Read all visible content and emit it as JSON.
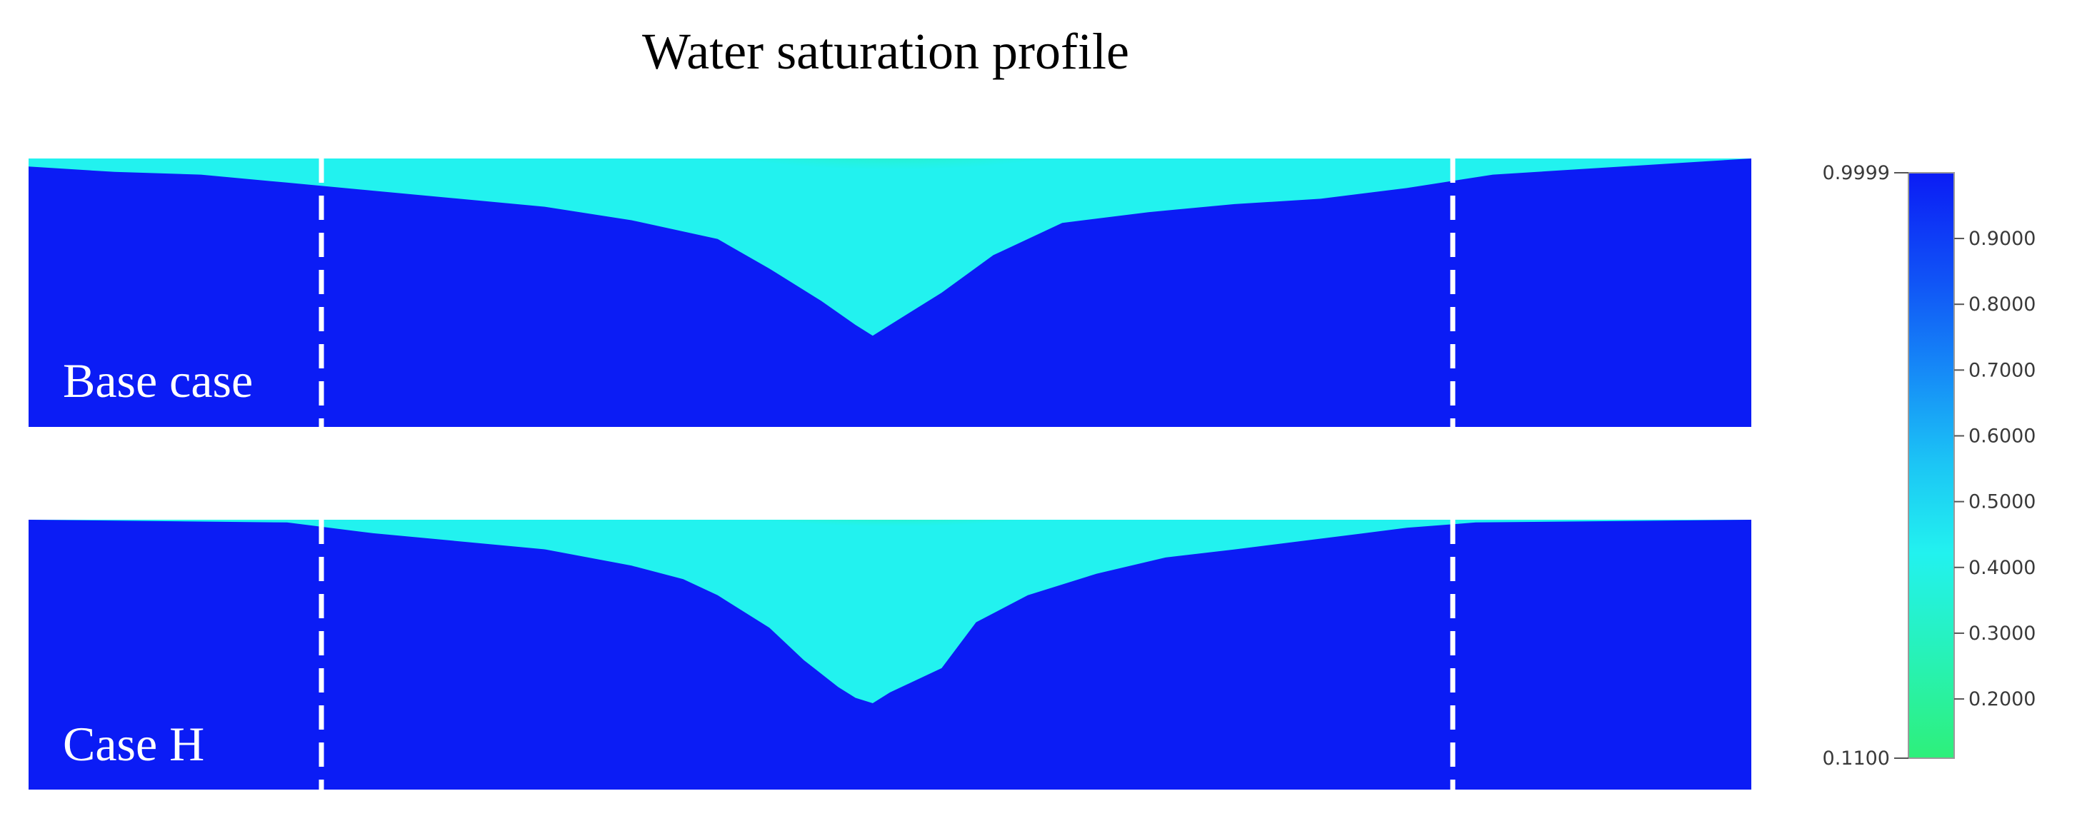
{
  "chart_data": {
    "type": "heatmap",
    "title": "Water saturation profile",
    "panels": [
      {
        "label": "Base case",
        "plume": {
          "surface_x_range": [
            0.06,
            0.97
          ],
          "outer_depth": [
            [
              0.0,
              0.03
            ],
            [
              0.05,
              0.05
            ],
            [
              0.1,
              0.06
            ],
            [
              0.15,
              0.09
            ],
            [
              0.2,
              0.12
            ],
            [
              0.25,
              0.15
            ],
            [
              0.3,
              0.18
            ],
            [
              0.35,
              0.23
            ],
            [
              0.4,
              0.3
            ],
            [
              0.43,
              0.41
            ],
            [
              0.46,
              0.53
            ],
            [
              0.48,
              0.62
            ],
            [
              0.49,
              0.66
            ],
            [
              0.5,
              0.62
            ],
            [
              0.53,
              0.5
            ],
            [
              0.56,
              0.36
            ],
            [
              0.6,
              0.24
            ],
            [
              0.65,
              0.2
            ],
            [
              0.7,
              0.17
            ],
            [
              0.75,
              0.15
            ],
            [
              0.8,
              0.11
            ],
            [
              0.85,
              0.06
            ],
            [
              0.9,
              0.04
            ],
            [
              0.95,
              0.02
            ],
            [
              1.0,
              0.0
            ]
          ],
          "low_saturation_core": [
            0.42,
            0.6,
            0.18
          ]
        }
      },
      {
        "label": "Case H",
        "plume": {
          "surface_x_range": [
            0.17,
            0.83
          ],
          "outer_depth": [
            [
              0.0,
              0.0
            ],
            [
              0.15,
              0.01
            ],
            [
              0.2,
              0.05
            ],
            [
              0.25,
              0.08
            ],
            [
              0.3,
              0.11
            ],
            [
              0.35,
              0.17
            ],
            [
              0.38,
              0.22
            ],
            [
              0.4,
              0.28
            ],
            [
              0.43,
              0.4
            ],
            [
              0.45,
              0.52
            ],
            [
              0.47,
              0.62
            ],
            [
              0.48,
              0.66
            ],
            [
              0.49,
              0.68
            ],
            [
              0.5,
              0.64
            ],
            [
              0.53,
              0.55
            ],
            [
              0.55,
              0.38
            ],
            [
              0.58,
              0.28
            ],
            [
              0.62,
              0.2
            ],
            [
              0.66,
              0.14
            ],
            [
              0.7,
              0.11
            ],
            [
              0.75,
              0.07
            ],
            [
              0.8,
              0.03
            ],
            [
              0.84,
              0.01
            ],
            [
              1.0,
              0.0
            ]
          ],
          "low_saturation_core": [
            0.42,
            0.58,
            0.1
          ]
        }
      }
    ],
    "colorbar": {
      "min_label": "0.1100",
      "max_label": "0.9999",
      "min": 0.11,
      "max": 0.9999,
      "ticks": [
        "0.9000",
        "0.8000",
        "0.7000",
        "0.6000",
        "0.5000",
        "0.4000",
        "0.3000",
        "0.2000"
      ],
      "tick_values": [
        0.9,
        0.8,
        0.7,
        0.6,
        0.5,
        0.4,
        0.3,
        0.2
      ],
      "colors": {
        "high": "#0b1cf5",
        "mid": "#22f2ef",
        "low": "#2ef07a"
      }
    }
  }
}
